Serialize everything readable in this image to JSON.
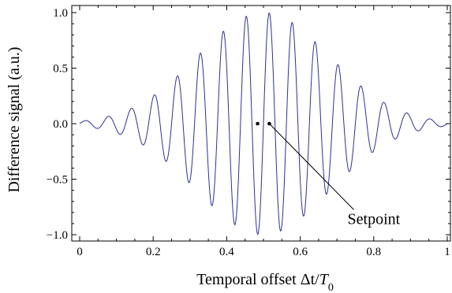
{
  "chart_data": {
    "type": "line",
    "title": "",
    "xlabel": "Temporal offset Δt/",
    "xlabel_symbol": "T",
    "xlabel_subscript": "0",
    "ylabel": "Difference signal (a.u.)",
    "xlim": [
      0,
      1
    ],
    "ylim": [
      -1.05,
      1.05
    ],
    "x_ticks": [
      0,
      0.2,
      0.4,
      0.6,
      0.8,
      1
    ],
    "x_tick_labels": [
      "0",
      "0.2",
      "0.4",
      "0.6",
      "0.8",
      "1"
    ],
    "y_ticks": [
      1.0,
      0.5,
      0.0,
      -0.5,
      -1.0
    ],
    "y_tick_labels": [
      "1.0",
      "0.5",
      "0.0",
      "−0.5",
      "−1.0"
    ],
    "grid": false,
    "legend": "none",
    "series": [
      {
        "color": "#2e3192",
        "function": "envelope * sin",
        "oscillation_period": 0.0625,
        "envelope_center": 0.5,
        "envelope_width": 0.255,
        "zero_crossing_at": 0.5
      }
    ],
    "markers": [
      {
        "x": 0.484,
        "y": 0.0
      },
      {
        "x": 0.516,
        "y": 0.0
      }
    ],
    "annotations": [
      {
        "text": "Setpoint",
        "points_to": {
          "x": 0.516,
          "y": 0.0
        },
        "text_at": {
          "x": 0.72,
          "y": -0.86
        }
      }
    ]
  }
}
